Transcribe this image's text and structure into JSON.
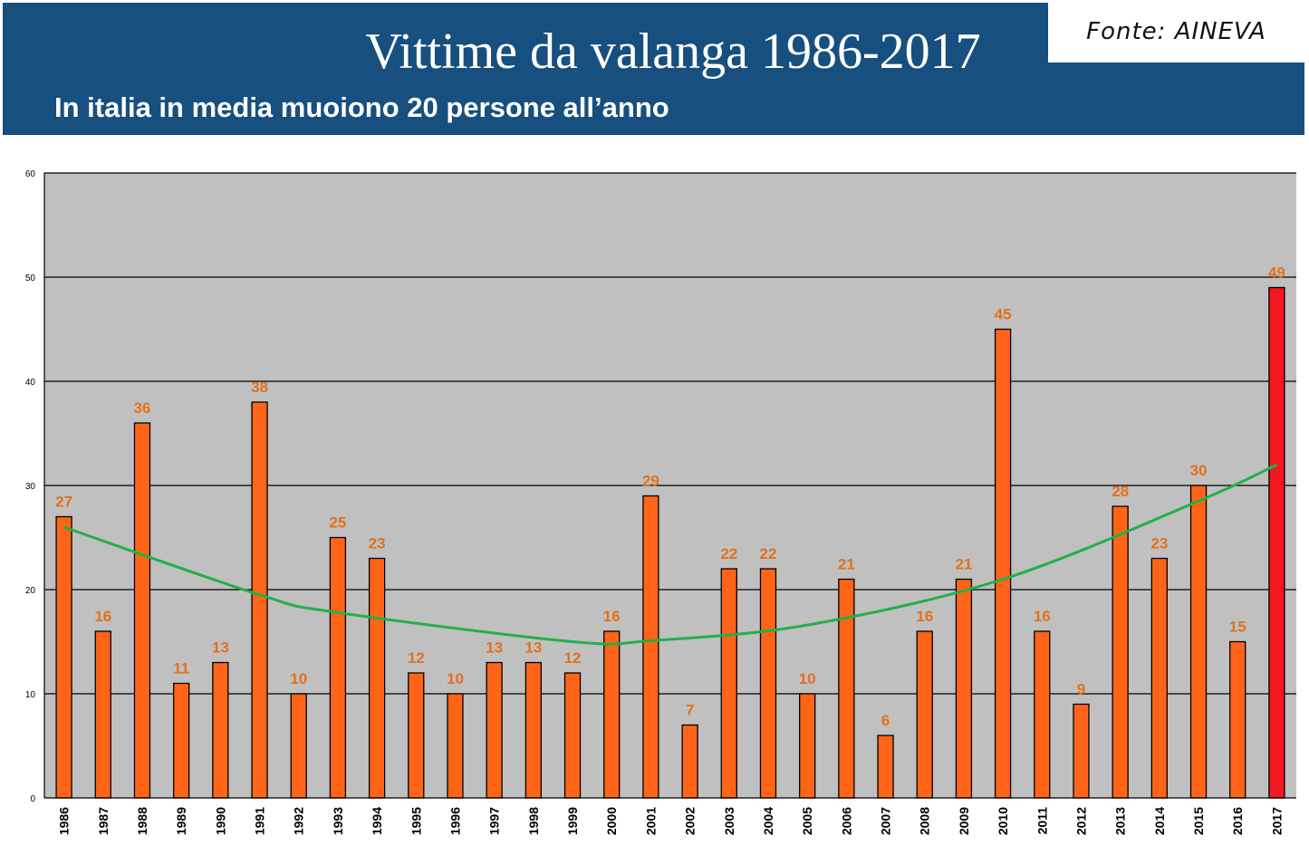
{
  "header": {
    "title": "Vittime da valanga 1986-2017",
    "subtitle": "In italia in media muoiono 20 persone all’anno",
    "source": "Fonte: AINEVA"
  },
  "colors": {
    "header_background": "#174f7f",
    "header_text": "#ffffff",
    "plot_background": "#c0c0c0",
    "bar": "#ff6418",
    "bar_highlight": "#f41820",
    "bar_outline": "#000000",
    "trendline": "#22b04a",
    "data_label": "#e2711d",
    "gridline": "#000000"
  },
  "chart_data": {
    "type": "bar",
    "title": "",
    "xlabel": "",
    "ylabel": "",
    "ylim": [
      0,
      60
    ],
    "yticks": [
      0,
      10,
      20,
      30,
      40,
      50,
      60
    ],
    "grid": true,
    "categories": [
      "1986",
      "1987",
      "1988",
      "1989",
      "1990",
      "1991",
      "1992",
      "1993",
      "1994",
      "1995",
      "1996",
      "1997",
      "1998",
      "1999",
      "2000",
      "2001",
      "2002",
      "2003",
      "2004",
      "2005",
      "2006",
      "2007",
      "2008",
      "2009",
      "2010",
      "2011",
      "2012",
      "2013",
      "2014",
      "2015",
      "2016",
      "2017"
    ],
    "values": [
      27,
      16,
      36,
      11,
      13,
      38,
      10,
      25,
      23,
      12,
      10,
      13,
      13,
      12,
      16,
      29,
      7,
      22,
      22,
      10,
      21,
      6,
      16,
      21,
      45,
      16,
      9,
      28,
      23,
      30,
      15,
      49
    ],
    "highlight_category": "2017",
    "data_labels": true,
    "trendline": {
      "type": "polynomial",
      "points": [
        {
          "x": "1986",
          "y": 26
        },
        {
          "x": "1991",
          "y": 19.5
        },
        {
          "x": "1993",
          "y": 17.8
        },
        {
          "x": "1999",
          "y": 15
        },
        {
          "x": "2001",
          "y": 15.1
        },
        {
          "x": "2005",
          "y": 16.6
        },
        {
          "x": "2010",
          "y": 21
        },
        {
          "x": "2015",
          "y": 28.5
        },
        {
          "x": "2017",
          "y": 32
        }
      ]
    }
  }
}
